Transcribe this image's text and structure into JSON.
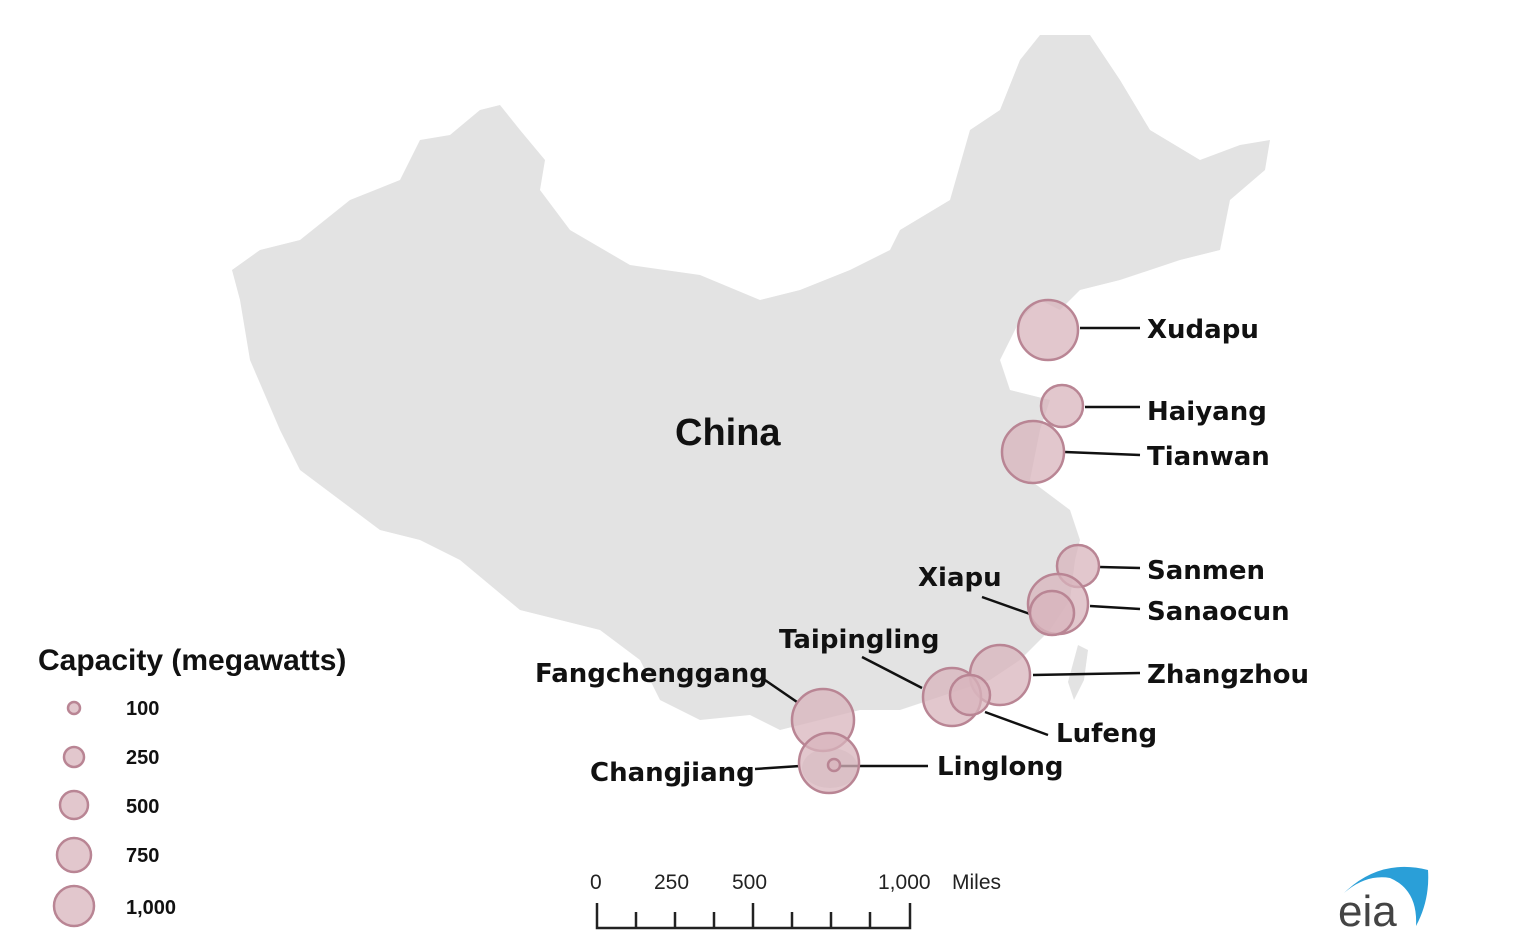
{
  "map": {
    "country_label": "China",
    "land_color": "#e3e3e3",
    "bubble_color": "#d8b4bc"
  },
  "plants": [
    {
      "name": "Xudapu"
    },
    {
      "name": "Haiyang"
    },
    {
      "name": "Tianwan"
    },
    {
      "name": "Sanmen"
    },
    {
      "name": "Sanaocun"
    },
    {
      "name": "Xiapu"
    },
    {
      "name": "Zhangzhou"
    },
    {
      "name": "Lufeng"
    },
    {
      "name": "Taipingling"
    },
    {
      "name": "Fangchenggang"
    },
    {
      "name": "Changjiang"
    },
    {
      "name": "Linglong"
    }
  ],
  "legend": {
    "title": "Capacity (megawatts)",
    "items": [
      "100",
      "250",
      "500",
      "750",
      "1,000"
    ]
  },
  "scale_bar": {
    "labels": [
      "0",
      "250",
      "500",
      "1,000"
    ],
    "unit": "Miles"
  },
  "logo": {
    "text": "eia",
    "color": "#2a9fd8"
  }
}
